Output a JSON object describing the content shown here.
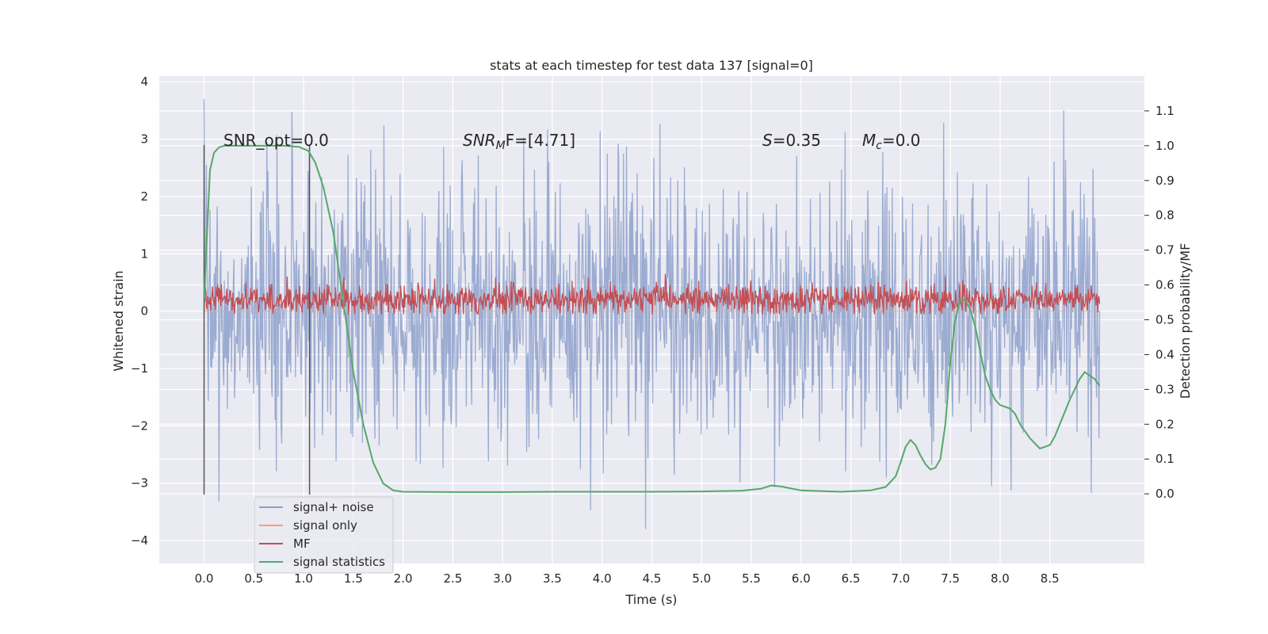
{
  "chart_data": {
    "type": "line",
    "title": "stats at each timestep for test data 137 [signal=0]",
    "xlabel": "Time (s)",
    "ylabel": "Whitened strain",
    "y2label": "Detection probability/MF",
    "xlim": [
      -0.45,
      9.45
    ],
    "ylim": [
      -4.4,
      4.1
    ],
    "y2lim": [
      -0.2,
      1.2
    ],
    "xticks": [
      0.0,
      0.5,
      1.0,
      1.5,
      2.0,
      2.5,
      3.0,
      3.5,
      4.0,
      4.5,
      5.0,
      5.5,
      6.0,
      6.5,
      7.0,
      7.5,
      8.0,
      8.5
    ],
    "xtick_labels": [
      "0.0",
      "0.5",
      "1.0",
      "1.5",
      "2.0",
      "2.5",
      "3.0",
      "3.5",
      "4.0",
      "4.5",
      "5.0",
      "5.5",
      "6.0",
      "6.5",
      "7.0",
      "7.5",
      "8.0",
      "8.5"
    ],
    "yticks": [
      4,
      3,
      2,
      1,
      0,
      -1,
      -2,
      -3,
      -4
    ],
    "ytick_labels": [
      "4",
      "3",
      "2",
      "1",
      "0",
      "−1",
      "−2",
      "−3",
      "−4"
    ],
    "y2ticks": [
      1.1,
      1.0,
      0.9,
      0.8,
      0.7,
      0.6,
      0.5,
      0.4,
      0.3,
      0.2,
      0.1,
      0.0
    ],
    "y2tick_labels": [
      "1.1",
      "1.0",
      "0.9",
      "0.8",
      "0.7",
      "0.6",
      "0.5",
      "0.4",
      "0.3",
      "0.2",
      "0.1",
      "0.0"
    ],
    "grid": true,
    "legend": {
      "position": "lower-left",
      "entries": [
        {
          "label": "signal+ noise",
          "color": "#8da0cb"
        },
        {
          "label": "signal only",
          "color": "#f0a07a"
        },
        {
          "label": "MF",
          "color": "#c44e52"
        },
        {
          "label": "signal statistics",
          "color": "#55a868"
        }
      ]
    },
    "annotations": {
      "snr_opt": "SNR_opt=0.0",
      "snr_mf_a": "SNR",
      "snr_mf_sub": "M",
      "snr_mf_b": "F=[4.71]",
      "s_a": "S",
      "s_b": "=0.35",
      "mc_a": "M",
      "mc_sub": "c",
      "mc_b": "=0.0"
    },
    "vlines": [
      0.0,
      1.06
    ],
    "series": [
      {
        "name": "signal+ noise",
        "color": "#8da0cb",
        "description": "noisy whitened strain samples, x from 0.0 to 9.0",
        "x_range": [
          0.0,
          9.0
        ],
        "approx_range": [
          -3.8,
          3.7
        ]
      },
      {
        "name": "signal only",
        "color": "#f0a07a",
        "x_range": [
          0.0,
          9.0
        ],
        "values_constant": 0.0
      },
      {
        "name": "MF",
        "color": "#c44e52",
        "x_range": [
          0.0,
          9.0
        ],
        "approx_range": [
          -0.05,
          0.95
        ],
        "mean": 0.2
      },
      {
        "name": "signal statistics",
        "color": "#55a868",
        "axis": "right",
        "x": [
          0.0,
          0.03,
          0.06,
          0.1,
          0.15,
          0.2,
          0.3,
          0.5,
          0.8,
          0.95,
          1.05,
          1.12,
          1.2,
          1.3,
          1.4,
          1.5,
          1.6,
          1.7,
          1.8,
          1.9,
          2.0,
          2.5,
          3.0,
          3.5,
          4.0,
          4.5,
          5.0,
          5.4,
          5.6,
          5.7,
          5.8,
          6.0,
          6.4,
          6.7,
          6.85,
          6.95,
          7.0,
          7.05,
          7.1,
          7.15,
          7.2,
          7.25,
          7.3,
          7.35,
          7.4,
          7.45,
          7.5,
          7.55,
          7.6,
          7.65,
          7.7,
          7.75,
          7.8,
          7.85,
          7.9,
          7.95,
          8.0,
          8.05,
          8.1,
          8.15,
          8.2,
          8.3,
          8.4,
          8.5,
          8.55,
          8.6,
          8.7,
          8.8,
          8.85,
          8.9,
          8.95,
          9.0
        ],
        "y": [
          0.56,
          0.75,
          0.93,
          0.98,
          0.995,
          1.0,
          1.0,
          1.0,
          1.0,
          0.997,
          0.985,
          0.95,
          0.88,
          0.75,
          0.55,
          0.35,
          0.2,
          0.09,
          0.03,
          0.01,
          0.006,
          0.005,
          0.005,
          0.006,
          0.006,
          0.006,
          0.007,
          0.009,
          0.015,
          0.024,
          0.021,
          0.01,
          0.006,
          0.01,
          0.02,
          0.05,
          0.09,
          0.135,
          0.155,
          0.14,
          0.11,
          0.085,
          0.07,
          0.075,
          0.1,
          0.2,
          0.38,
          0.5,
          0.56,
          0.555,
          0.53,
          0.48,
          0.41,
          0.34,
          0.3,
          0.27,
          0.255,
          0.25,
          0.245,
          0.23,
          0.2,
          0.16,
          0.13,
          0.14,
          0.165,
          0.2,
          0.27,
          0.33,
          0.35,
          0.34,
          0.33,
          0.31
        ]
      }
    ]
  }
}
